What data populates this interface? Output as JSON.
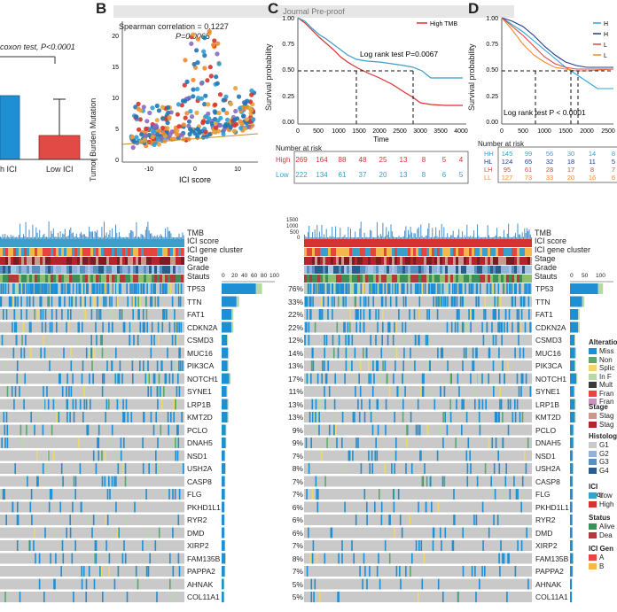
{
  "watermark": "Journal Pre-proof",
  "colors": {
    "blue": "#1f77b4",
    "red": "#d7322f",
    "orange": "#ef8a2d",
    "grey": "#c9c9c9",
    "teal": "#3a9fc9",
    "green": "#5aa86a",
    "lightgreen": "#b7d9a8",
    "yellow": "#f1d76a",
    "darkred": "#a8202a",
    "navy": "#1f3c88"
  },
  "panelA": {
    "test_label": "coxon test, P<0.0001",
    "groups": [
      {
        "name": "h ICI",
        "value": 0.6
      },
      {
        "name": "Low ICI",
        "value": 0.38
      }
    ]
  },
  "panelB": {
    "letter": "B",
    "corr_line1": "Spearman correlation = 0.1227",
    "corr_line2": "P=0.0065",
    "ylabel": "Tumor Burden Mutation",
    "xlabel": "ICI score",
    "yticks": [
      "0",
      "5",
      "10",
      "15",
      "20"
    ],
    "xticks": [
      "-10",
      "0",
      "10"
    ]
  },
  "panelC": {
    "letter": "C",
    "legend": "High TMB",
    "ptext": "Log rank test P=0.0067",
    "ylabel": "Survival probability",
    "xlabel": "Time",
    "yticks": [
      "0.00",
      "0.25",
      "0.50",
      "0.75",
      "1.00"
    ],
    "xticks": [
      "0",
      "500",
      "1000",
      "1500",
      "2000",
      "2500",
      "3000",
      "3500",
      "4000"
    ],
    "risk_title": "Number at risk",
    "risk_rows": [
      {
        "label": "High",
        "values": [
          "269",
          "164",
          "88",
          "48",
          "25",
          "13",
          "8",
          "5",
          "4"
        ]
      },
      {
        "label": "Low",
        "values": [
          "222",
          "134",
          "61",
          "37",
          "20",
          "13",
          "8",
          "6",
          "5"
        ]
      }
    ]
  },
  "panelD": {
    "letter": "D",
    "legend": [
      "H",
      "H",
      "L",
      "L"
    ],
    "ptext": "Log rank test P < 0.0001",
    "ylabel": "Survival probability",
    "yticks": [
      "0.00",
      "0.25",
      "0.50",
      "0.75",
      "1.00"
    ],
    "xticks": [
      "0",
      "500",
      "1000",
      "1500",
      "2000",
      "2500"
    ],
    "risk_title": "Number at risk",
    "risk_rows": [
      {
        "label": "HH",
        "values": [
          "145",
          "99",
          "56",
          "30",
          "14",
          "8"
        ]
      },
      {
        "label": "HL",
        "values": [
          "124",
          "65",
          "32",
          "18",
          "11",
          "5"
        ]
      },
      {
        "label": "LH",
        "values": [
          "95",
          "61",
          "28",
          "17",
          "8",
          "7"
        ]
      },
      {
        "label": "LL",
        "values": [
          "127",
          "73",
          "33",
          "20",
          "16",
          "6"
        ]
      }
    ]
  },
  "oncoprint": {
    "tracks": [
      "TMB",
      "ICI score",
      "ICI gene cluster",
      "Stage",
      "Grade",
      "Stauts"
    ],
    "tmb_ticks": [
      "1500",
      "1000",
      "500",
      "0"
    ],
    "bar_axis": [
      "0",
      "20",
      "40",
      "60",
      "80",
      "100"
    ],
    "bar_axis_right": [
      "0",
      "50",
      "100"
    ],
    "genes": [
      {
        "name": "TP53",
        "left_pct": "76%",
        "right_pct": "",
        "freq": 0.76
      },
      {
        "name": "TTN",
        "left_pct": "33%",
        "right_pct": "",
        "freq": 0.33
      },
      {
        "name": "FAT1",
        "left_pct": "22%",
        "right_pct": "",
        "freq": 0.22
      },
      {
        "name": "CDKN2A",
        "left_pct": "22%",
        "right_pct": "",
        "freq": 0.22
      },
      {
        "name": "CSMD3",
        "left_pct": "12%",
        "right_pct": "",
        "freq": 0.12
      },
      {
        "name": "MUC16",
        "left_pct": "14%",
        "right_pct": "",
        "freq": 0.14
      },
      {
        "name": "PIK3CA",
        "left_pct": "13%",
        "right_pct": "",
        "freq": 0.13
      },
      {
        "name": "NOTCH1",
        "left_pct": "17%",
        "right_pct": "",
        "freq": 0.17
      },
      {
        "name": "SYNE1",
        "left_pct": "11%",
        "right_pct": "",
        "freq": 0.11
      },
      {
        "name": "LRP1B",
        "left_pct": "13%",
        "right_pct": "",
        "freq": 0.13
      },
      {
        "name": "KMT2D",
        "left_pct": "13%",
        "right_pct": "",
        "freq": 0.13
      },
      {
        "name": "PCLO",
        "left_pct": "9%",
        "right_pct": "",
        "freq": 0.09
      },
      {
        "name": "DNAH5",
        "left_pct": "9%",
        "right_pct": "",
        "freq": 0.09
      },
      {
        "name": "NSD1",
        "left_pct": "7%",
        "right_pct": "",
        "freq": 0.07
      },
      {
        "name": "USH2A",
        "left_pct": "8%",
        "right_pct": "",
        "freq": 0.08
      },
      {
        "name": "CASP8",
        "left_pct": "7%",
        "right_pct": "",
        "freq": 0.07
      },
      {
        "name": "FLG",
        "left_pct": "7%",
        "right_pct": "",
        "freq": 0.07
      },
      {
        "name": "PKHD1L1",
        "left_pct": "6%",
        "right_pct": "",
        "freq": 0.06
      },
      {
        "name": "RYR2",
        "left_pct": "6%",
        "right_pct": "",
        "freq": 0.06
      },
      {
        "name": "DMD",
        "left_pct": "6%",
        "right_pct": "",
        "freq": 0.06
      },
      {
        "name": "XIRP2",
        "left_pct": "7%",
        "right_pct": "",
        "freq": 0.07
      },
      {
        "name": "FAM135B",
        "left_pct": "8%",
        "right_pct": "",
        "freq": 0.08
      },
      {
        "name": "PAPPA2",
        "left_pct": "7%",
        "right_pct": "",
        "freq": 0.07
      },
      {
        "name": "AHNAK",
        "left_pct": "5%",
        "right_pct": "",
        "freq": 0.05
      },
      {
        "name": "COL11A1",
        "left_pct": "5%",
        "right_pct": "",
        "freq": 0.05
      }
    ]
  },
  "legend": {
    "alteration_title": "Alteratio",
    "alteration_items": [
      "Miss",
      "Non",
      "Splic",
      "In F",
      "Mult",
      "Fran",
      "Fran"
    ],
    "stage_title": "Stage",
    "stage_items": [
      "Stag",
      "Stag"
    ],
    "histology_title": "Histolog",
    "histology_items": [
      "G1",
      "G2",
      "G3",
      "G4"
    ],
    "ici_title": "ICI scor",
    "ici_items": [
      "Low",
      "High"
    ],
    "status_title": "Status",
    "status_items": [
      "Alive",
      "Dea"
    ],
    "gene_title": "ICI Gen",
    "gene_items": [
      "A",
      "B"
    ]
  }
}
